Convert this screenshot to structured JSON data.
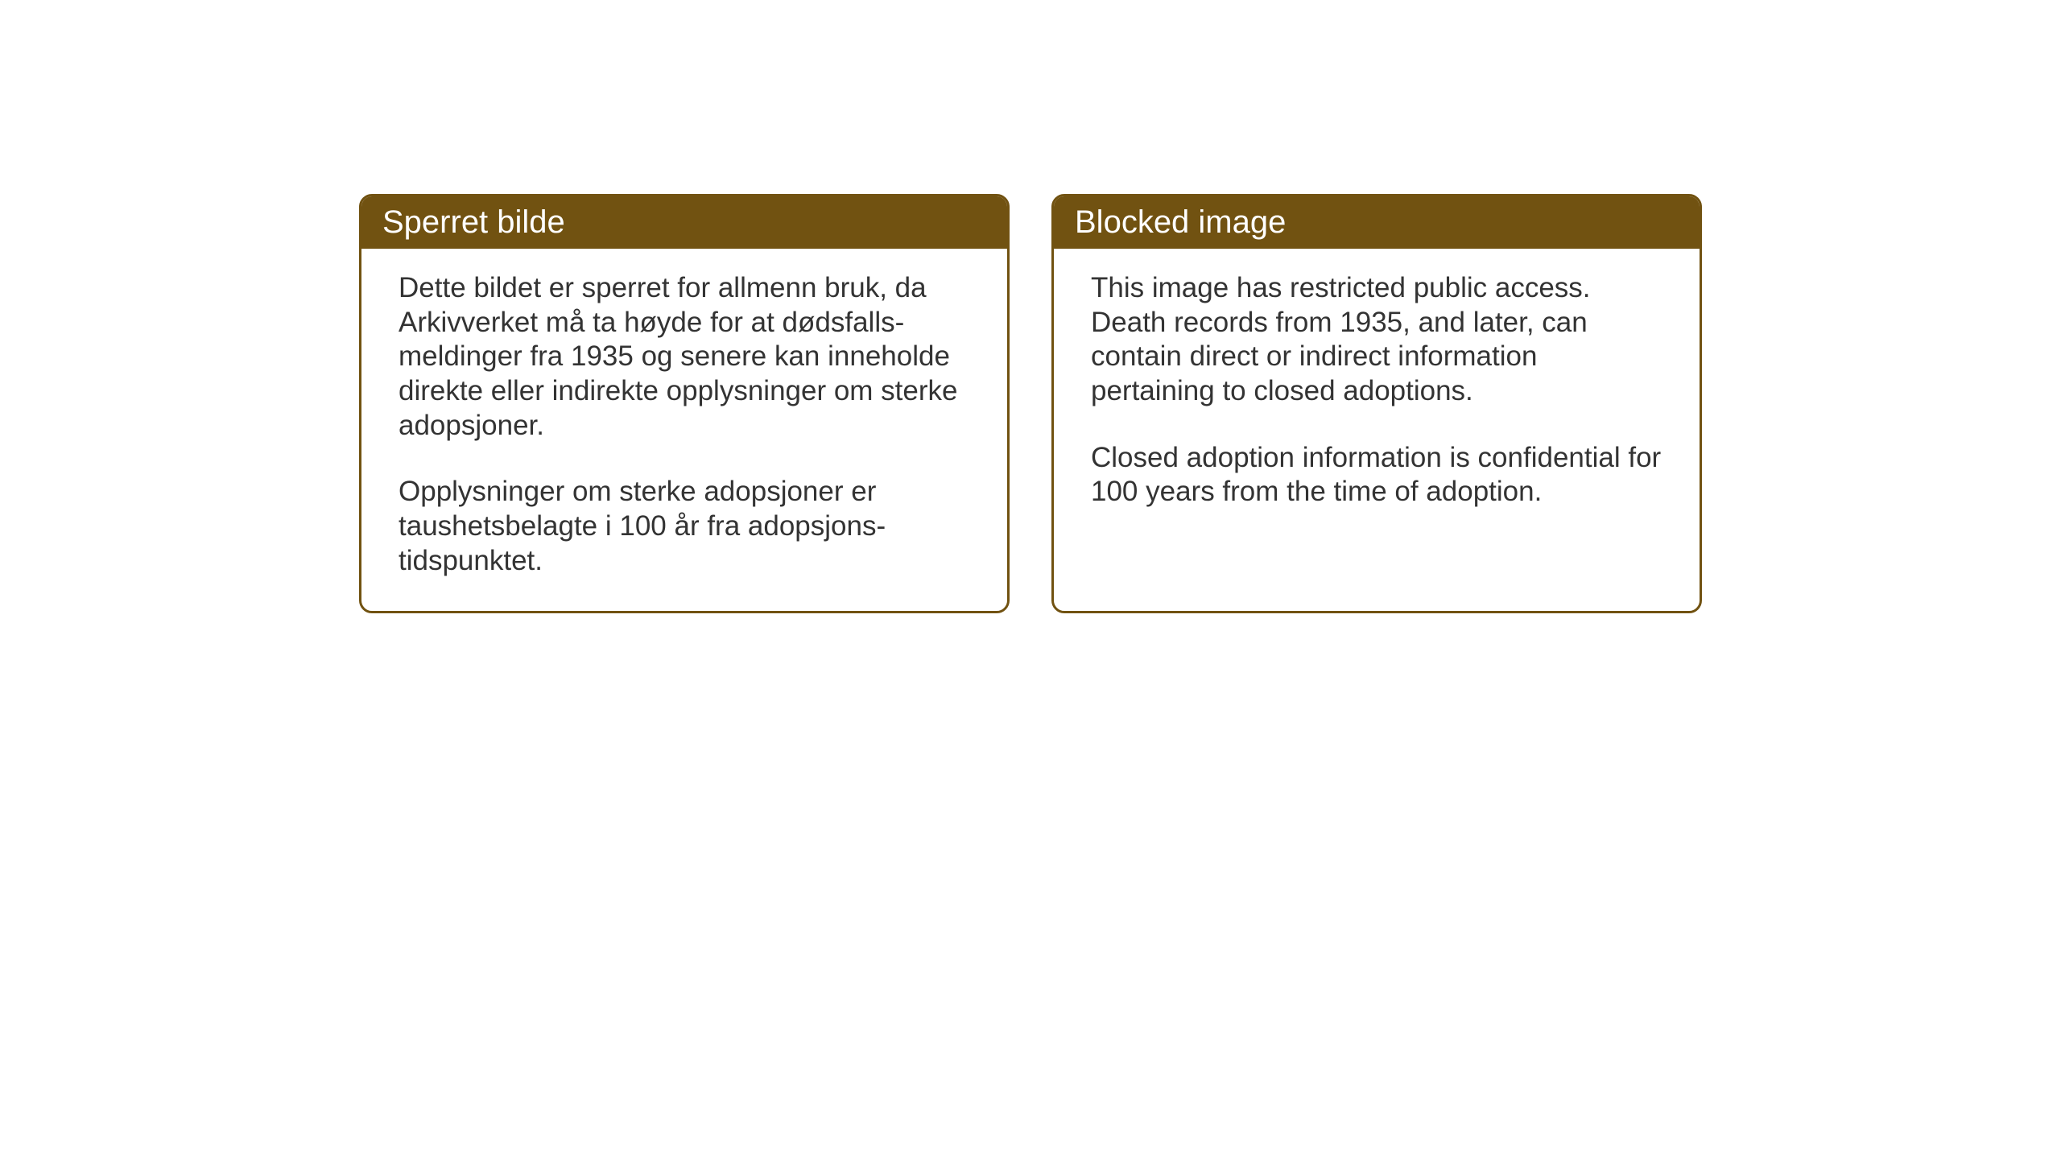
{
  "cards": [
    {
      "title": "Sperret bilde",
      "paragraph1": "Dette bildet er sperret for allmenn bruk, da Arkivverket må ta høyde for at dødsfalls-meldinger fra 1935 og senere kan inneholde direkte eller indirekte opplysninger om sterke adopsjoner.",
      "paragraph2": "Opplysninger om sterke adopsjoner er taushetsbelagte i 100 år fra adopsjons-tidspunktet."
    },
    {
      "title": "Blocked image",
      "paragraph1": "This image has restricted public access. Death records from 1935, and later, can contain direct or indirect information pertaining to closed adoptions.",
      "paragraph2": "Closed adoption information is confidential for 100 years from the time of adoption."
    }
  ],
  "styling": {
    "card_border_color": "#715211",
    "card_header_bg": "#715211",
    "card_header_text_color": "#ffffff",
    "card_body_bg": "#ffffff",
    "card_body_text_color": "#333333",
    "page_bg": "#ffffff",
    "header_fontsize": 40,
    "body_fontsize": 35,
    "border_radius": 16,
    "border_width": 3
  }
}
